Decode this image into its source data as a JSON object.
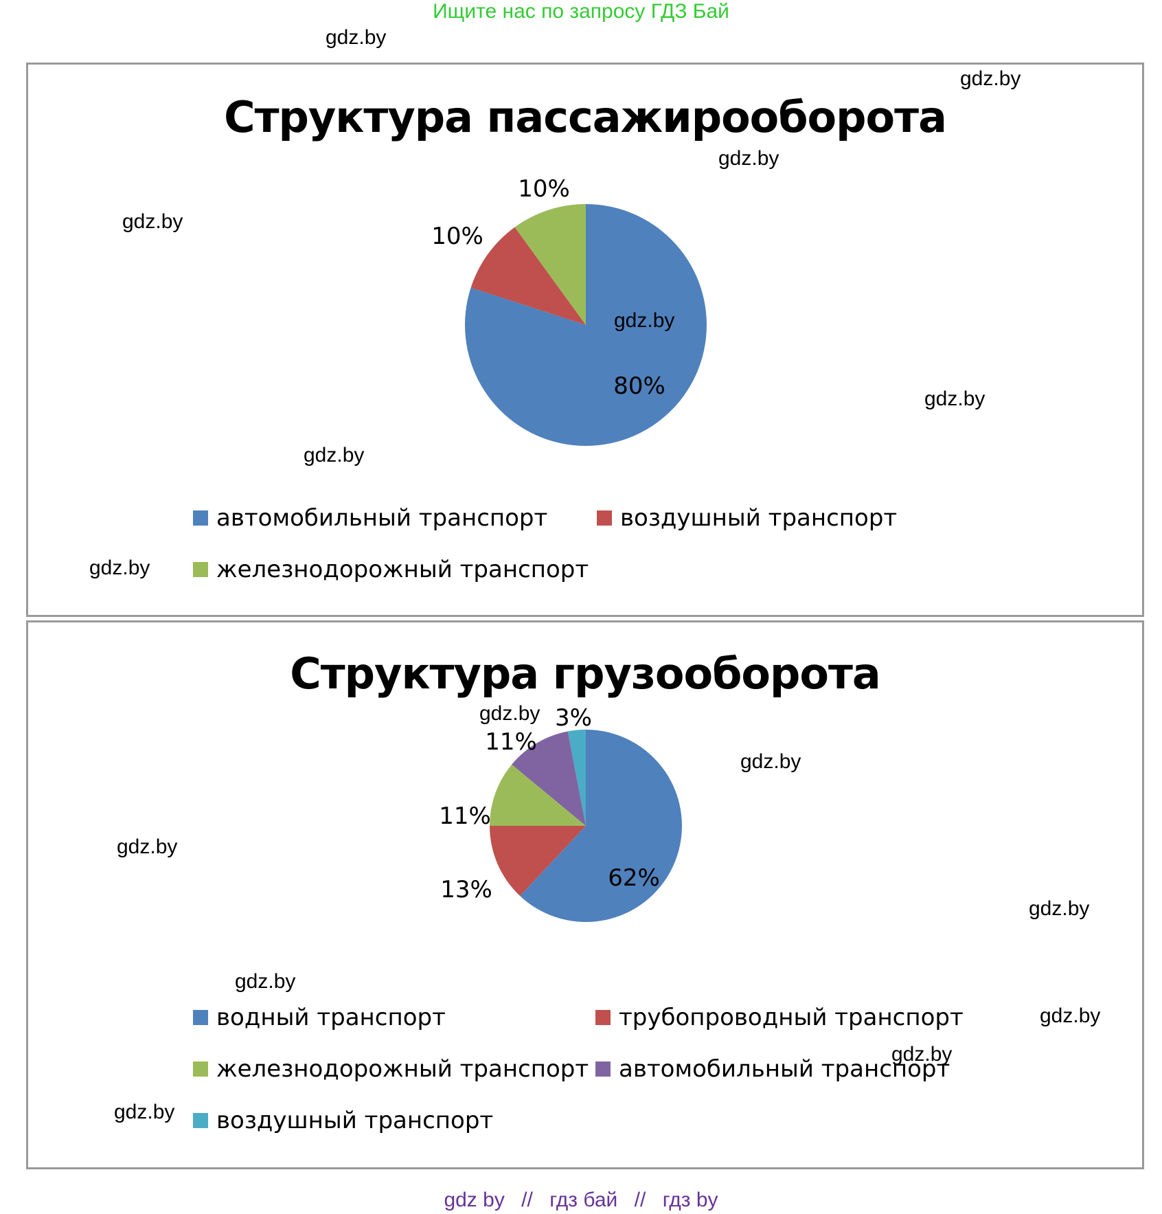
{
  "banner": "Ищите нас по запросу ГДЗ Бай",
  "watermark_text": "gdz.by",
  "footer": {
    "part1": "gdz by",
    "sep1": "//",
    "part2": "гдз бай",
    "sep2": "//",
    "part3": "гдз by"
  },
  "chart_data": [
    {
      "type": "pie",
      "title": "Структура пассажирооборота",
      "categories": [
        "автомобильный транспорт",
        "воздушный транспорт",
        "железнодорожный транспорт"
      ],
      "values": [
        80,
        10,
        10
      ],
      "labels": [
        "80%",
        "10%",
        "10%"
      ],
      "colors": [
        "#4f81bd",
        "#c0504d",
        "#9bbb59"
      ],
      "legend_position": "bottom"
    },
    {
      "type": "pie",
      "title": "Структура грузооборота",
      "categories": [
        "водный транспорт",
        "трубопроводный транспорт",
        "железнодорожный транспорт",
        "автомобильный транспорт",
        "воздушный транспорт"
      ],
      "values": [
        62,
        13,
        11,
        11,
        3
      ],
      "labels": [
        "62%",
        "13%",
        "11%",
        "11%",
        "3%"
      ],
      "colors": [
        "#4f81bd",
        "#c0504d",
        "#9bbb59",
        "#8064a2",
        "#4bacc6"
      ],
      "legend_position": "bottom"
    }
  ]
}
